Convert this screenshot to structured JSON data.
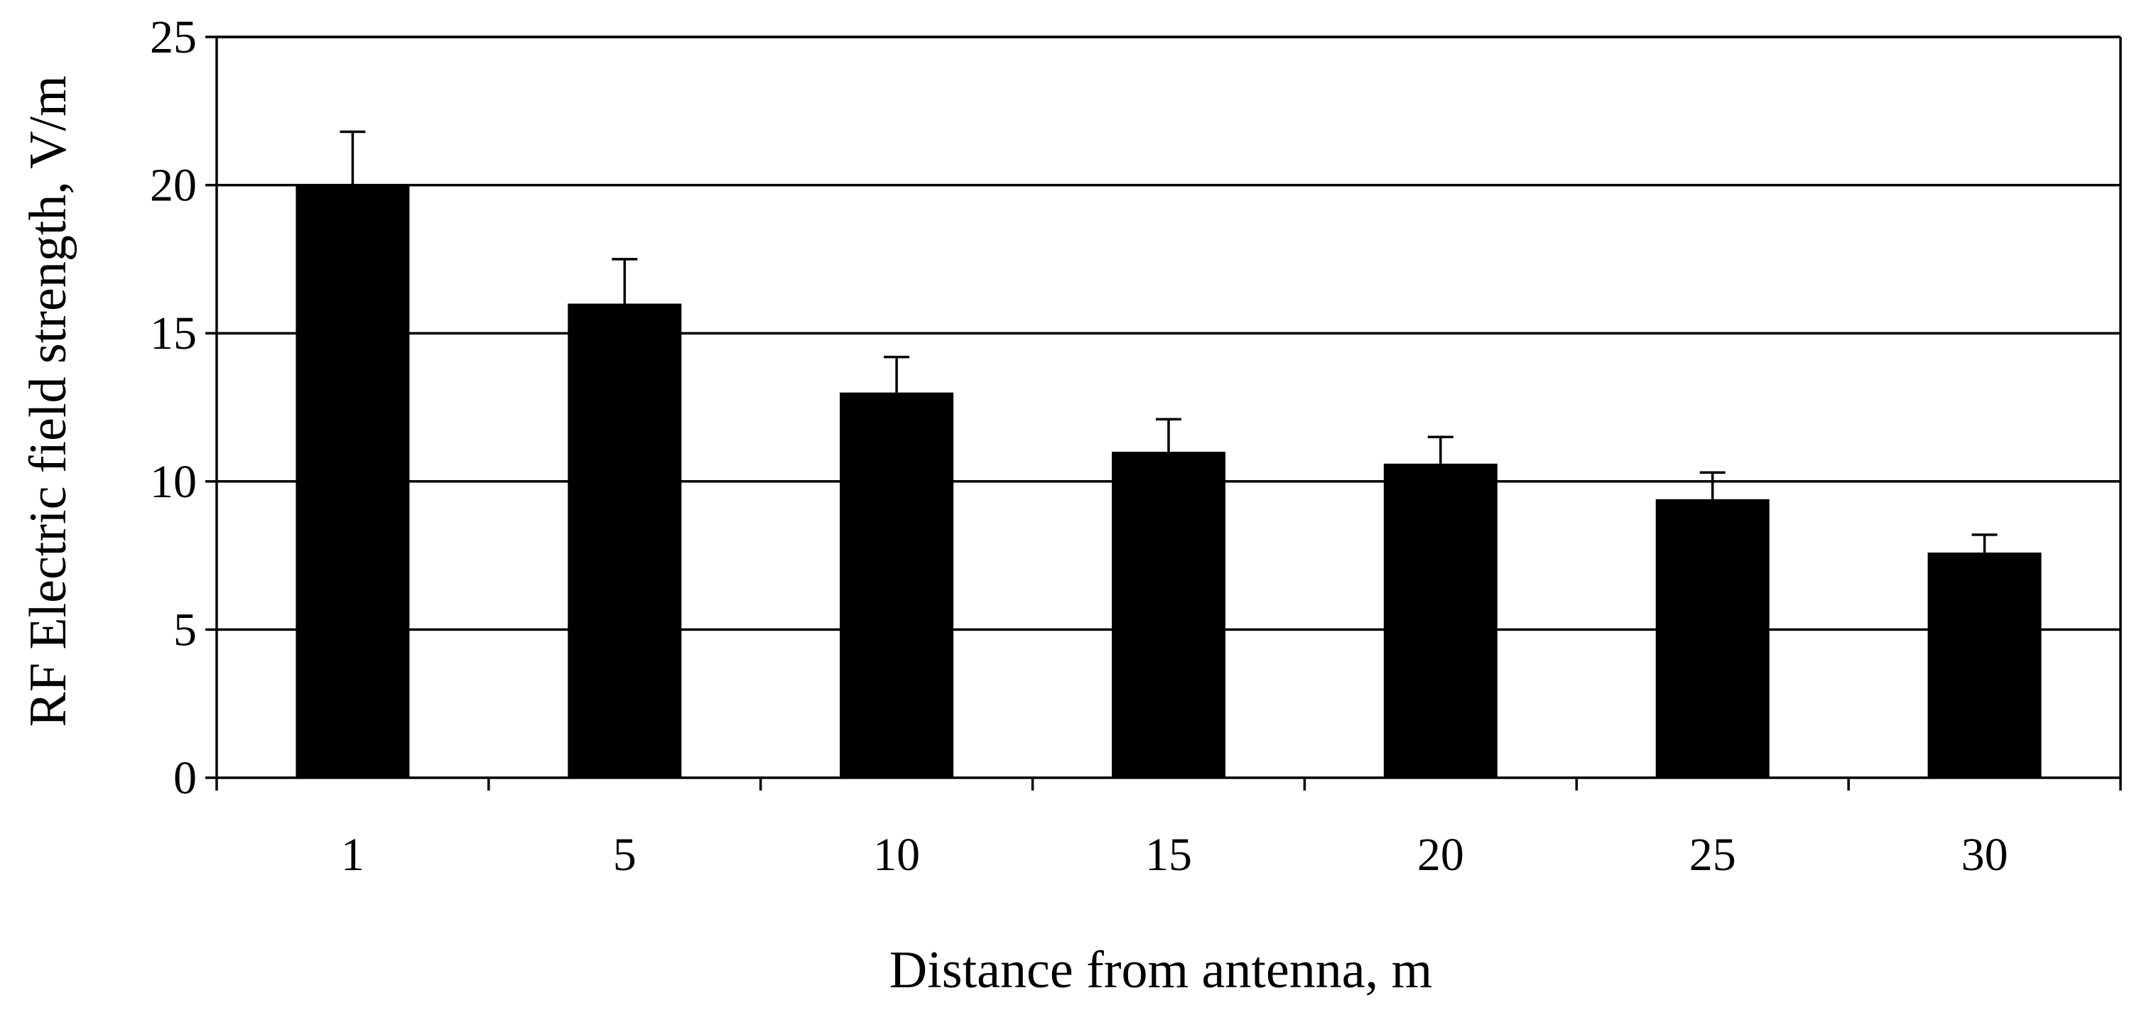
{
  "chart_data": {
    "type": "bar",
    "title": "",
    "xlabel": "Distance from antenna, m",
    "ylabel": "RF Electric field strength, V/m",
    "categories": [
      "1",
      "5",
      "10",
      "15",
      "20",
      "25",
      "30"
    ],
    "series": [
      {
        "values": [
          20.0,
          16.0,
          13.0,
          11.0,
          10.6,
          9.4,
          7.6
        ],
        "error_plus": [
          1.8,
          1.5,
          1.2,
          1.1,
          0.9,
          0.9,
          0.6
        ]
      }
    ],
    "ylim": [
      0,
      25
    ],
    "yticks": [
      "0",
      "5",
      "10",
      "15",
      "20",
      "25"
    ],
    "grid": true,
    "legend": "none",
    "colors": {
      "bar": "#000000",
      "grid": "#000000",
      "background": "#ffffff"
    }
  }
}
